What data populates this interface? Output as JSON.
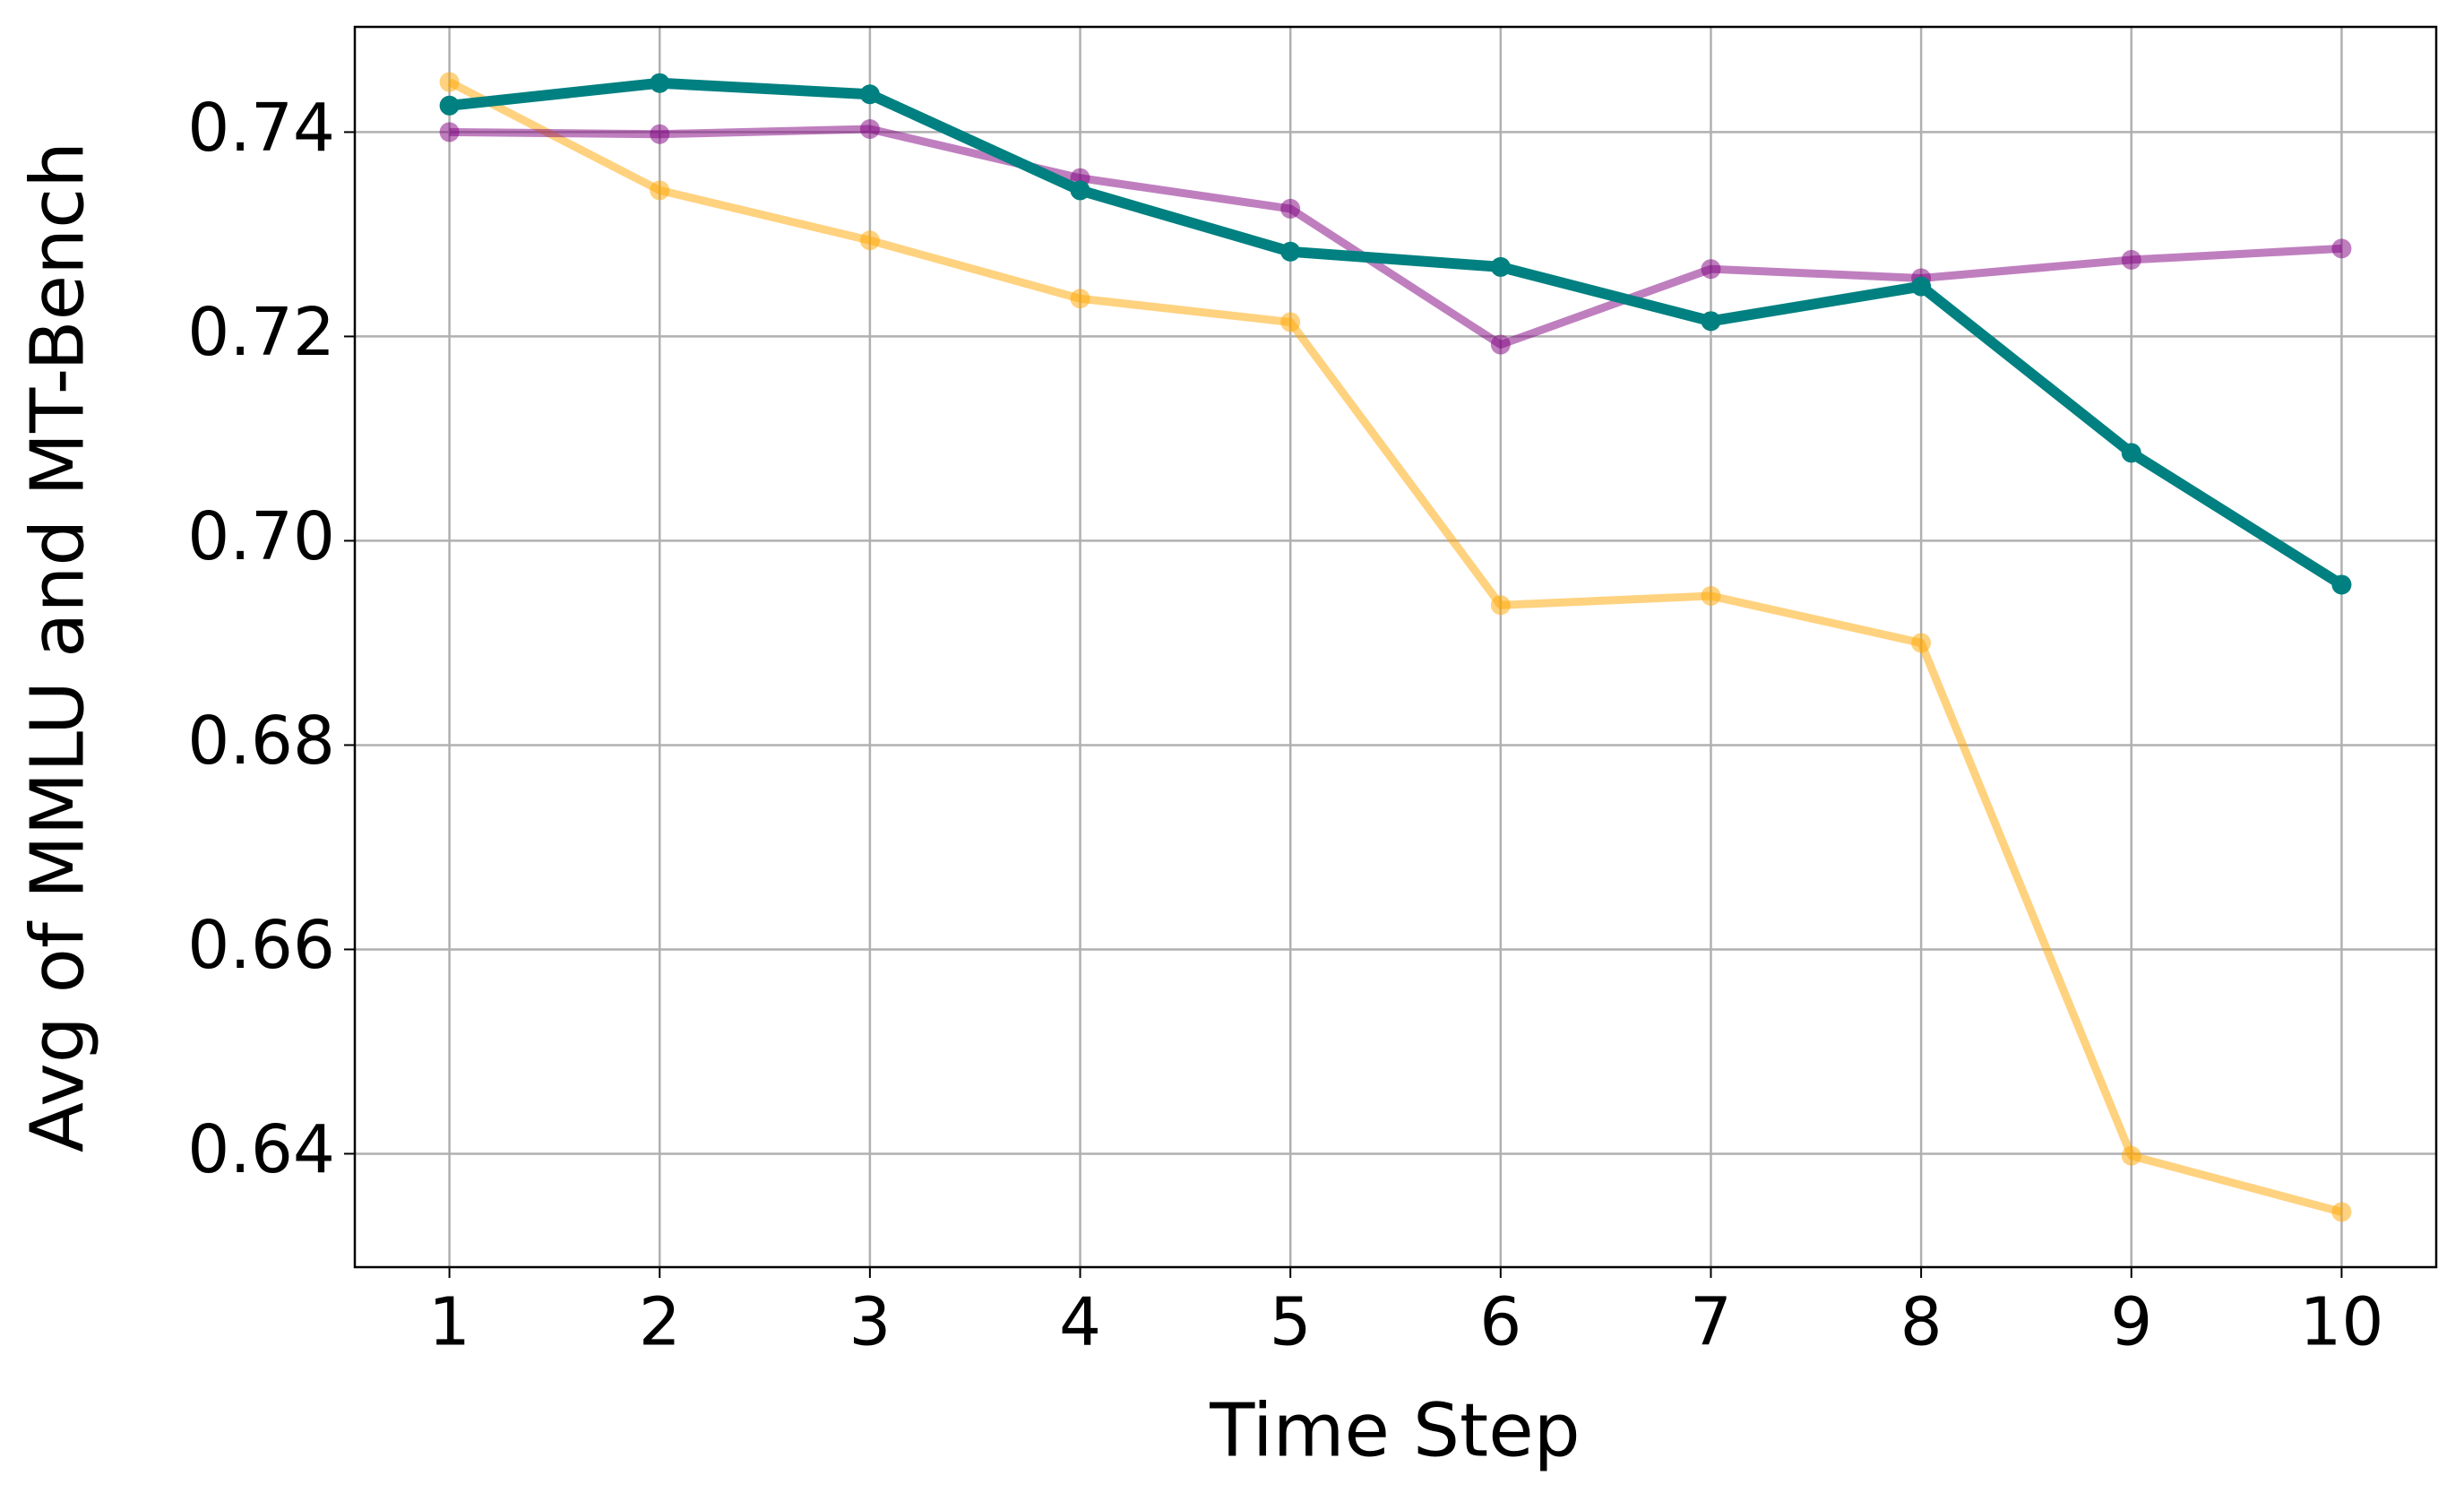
{
  "chart_data": {
    "type": "line",
    "xlabel": "Time Step",
    "ylabel": "Avg of MMLU and MT-Bench",
    "x": [
      1,
      2,
      3,
      4,
      5,
      6,
      7,
      8,
      9,
      10
    ],
    "series": [
      {
        "color": "#ffa500",
        "opacity": 0.5,
        "values": [
          0.7449,
          0.7343,
          0.7294,
          0.7237,
          0.7214,
          0.6937,
          0.6946,
          0.69,
          0.6398,
          0.6343
        ]
      },
      {
        "color": "#800080",
        "opacity": 0.5,
        "values": [
          0.74,
          0.7398,
          0.7403,
          0.7355,
          0.7325,
          0.7192,
          0.7266,
          0.7257,
          0.7275,
          0.7286
        ]
      },
      {
        "color": "#008080",
        "opacity": 1,
        "values": [
          0.7426,
          0.7448,
          0.7437,
          0.7343,
          0.7283,
          0.7268,
          0.7215,
          0.7249,
          0.7086,
          0.6957
        ]
      }
    ],
    "xlim": [
      0.55,
      10.45
    ],
    "xticks": [
      1,
      2,
      3,
      4,
      5,
      6,
      7,
      8,
      9,
      10
    ],
    "ylim": [
      0.6289,
      0.7503
    ],
    "yticks": [
      {
        "value": 0.64,
        "label": "0.64"
      },
      {
        "value": 0.66,
        "label": "0.66"
      },
      {
        "value": 0.68,
        "label": "0.68"
      },
      {
        "value": 0.7,
        "label": "0.70"
      },
      {
        "value": 0.72,
        "label": "0.72"
      },
      {
        "value": 0.74,
        "label": "0.74"
      }
    ],
    "grid": true
  }
}
